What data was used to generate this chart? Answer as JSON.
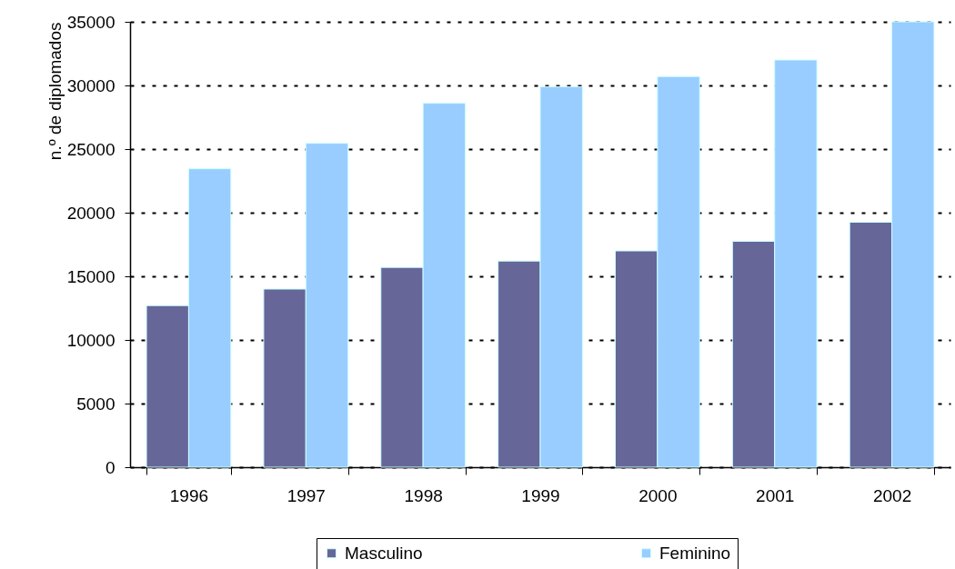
{
  "chart_data": {
    "type": "bar",
    "ylabel": "n.º de diplomados",
    "categories": [
      "1996",
      "1997",
      "1998",
      "1999",
      "2000",
      "2001",
      "2002"
    ],
    "series": [
      {
        "name": "Masculino",
        "color": "#666699",
        "values": [
          12700,
          14000,
          15700,
          16200,
          17000,
          17750,
          19250
        ]
      },
      {
        "name": "Feminino",
        "color": "#99ccff",
        "values": [
          23450,
          25450,
          28600,
          29900,
          30700,
          32000,
          35000
        ]
      }
    ],
    "ylim": [
      0,
      35000
    ],
    "yticks": [
      0,
      5000,
      10000,
      15000,
      20000,
      25000,
      30000,
      35000
    ],
    "grid": "y",
    "legend": "bottom"
  }
}
